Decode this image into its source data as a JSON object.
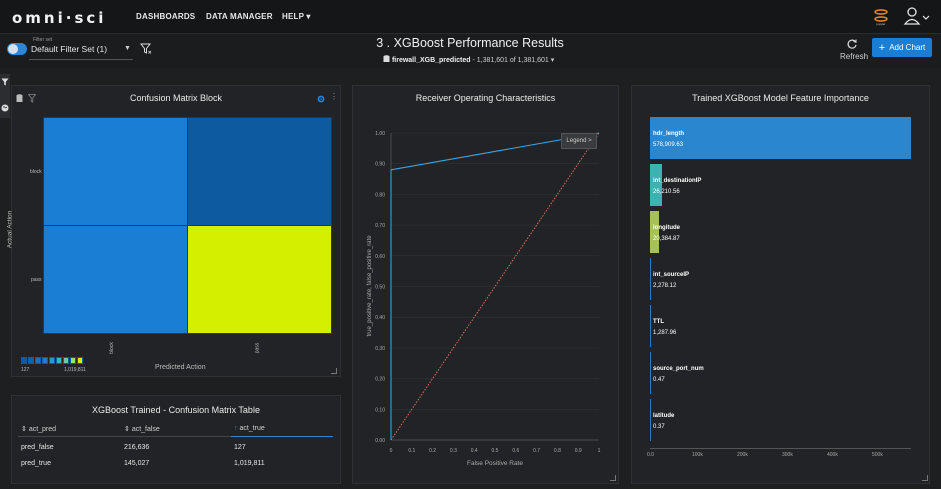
{
  "nav": {
    "logo": "omni·sci",
    "items": [
      "DASHBOARDS",
      "DATA MANAGER",
      "HELP ▾"
    ],
    "jupyter_label": "jupyter"
  },
  "filter": {
    "caption": "Filter set",
    "selected": "Default Filter Set (1)"
  },
  "dashboard": {
    "title": "3 . XGBoost Performance Results",
    "table_name": "firewall_XGB_predicted",
    "row_count": "1,381,601 of 1,381,601"
  },
  "actions": {
    "refresh": "Refresh",
    "add_chart": "Add Chart"
  },
  "colors": {
    "accent": "#1a7ed5",
    "cm_high": "#d4f000",
    "cm_mid": "#1a7ed5",
    "cm_low": "#0e5aa0"
  },
  "confusion_matrix": {
    "title": "Confusion Matrix Block",
    "y_label": "Actual Action",
    "x_label": "Predicted Action",
    "row_labels": [
      "block",
      "pass"
    ],
    "col_labels": [
      "block",
      "pass"
    ],
    "legend_min": "127",
    "legend_max": "1,019,811"
  },
  "cm_table": {
    "title": "XGBoost Trained - Confusion Matrix Table",
    "headers": [
      "act_pred",
      "act_false",
      "act_true"
    ],
    "rows": [
      [
        "pred_false",
        "216,636",
        "127"
      ],
      [
        "pred_true",
        "145,027",
        "1,019,811"
      ]
    ]
  },
  "roc": {
    "title": "Receiver Operating Characteristics",
    "x_label": "False Positive Rate",
    "y_label": "true_positive_rate, false_positive_rate",
    "legend": "Legend >"
  },
  "feature_importance": {
    "title": "Trained XGBoost Model Feature Importance"
  },
  "chart_data": [
    {
      "type": "line",
      "title": "Receiver Operating Characteristics",
      "xlabel": "False Positive Rate",
      "ylabel": "true_positive_rate, false_positive_rate",
      "xlim": [
        0,
        1
      ],
      "ylim": [
        0,
        1
      ],
      "x_ticks": [
        "0",
        "0.1",
        "0.2",
        "0.3",
        "0.4",
        "0.5",
        "0.6",
        "0.7",
        "0.8",
        "0.9",
        "1"
      ],
      "y_ticks": [
        "0.00",
        "0.10",
        "0.20",
        "0.30",
        "0.40",
        "0.50",
        "0.60",
        "0.70",
        "0.80",
        "0.90",
        "1.00"
      ],
      "series": [
        {
          "name": "true_positive_rate",
          "color": "#3aa8e6",
          "x": [
            0,
            0,
            1
          ],
          "y": [
            0,
            0.88,
            1
          ]
        },
        {
          "name": "false_positive_rate",
          "color": "#e0705a",
          "style": "dotted",
          "x": [
            0,
            1
          ],
          "y": [
            0,
            1
          ]
        }
      ]
    },
    {
      "type": "bar",
      "orientation": "horizontal",
      "title": "Trained XGBoost Model Feature Importance",
      "xlim": [
        0,
        580000
      ],
      "x_ticks": [
        "0.0",
        "100k",
        "200k",
        "300k",
        "400k",
        "500k"
      ],
      "categories": [
        "hdr_length",
        "int_destinationIP",
        "longitude",
        "int_sourceIP",
        "TTL",
        "source_port_num",
        "latitude"
      ],
      "values": [
        578909.63,
        26210.56,
        20384.87,
        2278.12,
        1287.96,
        0.47,
        0.37
      ],
      "labels": [
        "578,909.63",
        "26,210.56",
        "20,384.87",
        "2,278.12",
        "1,287.96",
        "0.47",
        "0.37"
      ],
      "colors": [
        "#2b86d0",
        "#3bb3b0",
        "#a8c05a",
        "#1a7ed5",
        "#1a7ed5",
        "#1a7ed5",
        "#1a7ed5"
      ]
    },
    {
      "type": "heatmap",
      "title": "Confusion Matrix Block",
      "xlabel": "Predicted Action",
      "ylabel": "Actual Action",
      "x": [
        "block",
        "pass"
      ],
      "y": [
        "block",
        "pass"
      ],
      "values": [
        [
          216636,
          127
        ],
        [
          145027,
          1019811
        ]
      ]
    }
  ]
}
